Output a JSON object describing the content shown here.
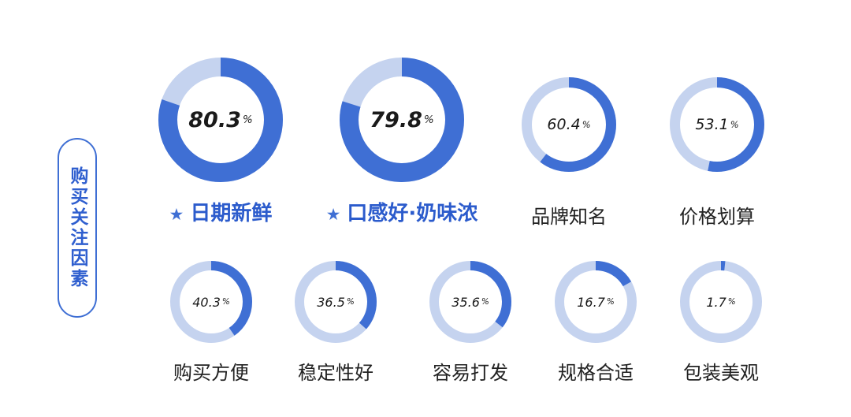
{
  "side_label": "购买关注因素",
  "colors": {
    "filled": "#3f6fd4",
    "track": "#c5d3ef"
  },
  "chart_data": {
    "type": "pie",
    "variant": "donut",
    "unit": "%",
    "items": [
      {
        "label": "日期新鲜",
        "value": 80.3,
        "value_text": "80.3",
        "highlight": true
      },
      {
        "label": "口感好·奶味浓",
        "value": 79.8,
        "value_text": "79.8",
        "highlight": true
      },
      {
        "label": "品牌知名",
        "value": 60.4,
        "value_text": "60.4",
        "highlight": false
      },
      {
        "label": "价格划算",
        "value": 53.1,
        "value_text": "53.1",
        "highlight": false
      },
      {
        "label": "购买方便",
        "value": 40.3,
        "value_text": "40.3",
        "highlight": false
      },
      {
        "label": "稳定性好",
        "value": 36.5,
        "value_text": "36.5",
        "highlight": false
      },
      {
        "label": "容易打发",
        "value": 35.6,
        "value_text": "35.6",
        "highlight": false
      },
      {
        "label": "规格合适",
        "value": 16.7,
        "value_text": "16.7",
        "highlight": false
      },
      {
        "label": "包装美观",
        "value": 1.7,
        "value_text": "1.7",
        "highlight": false
      }
    ]
  }
}
